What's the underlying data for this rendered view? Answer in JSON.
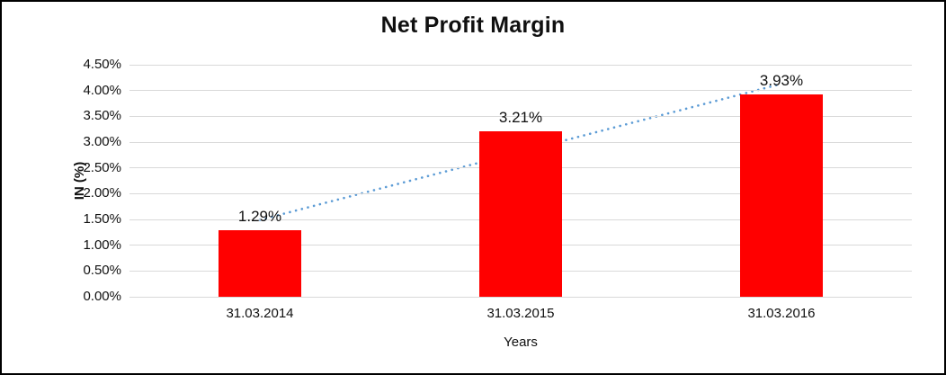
{
  "chart_data": {
    "type": "bar",
    "title": "Net Profit Margin",
    "xlabel": "Years",
    "ylabel": "IN (%)",
    "categories": [
      "31.03.2014",
      "31.03.2015",
      "31.03.2016"
    ],
    "values": [
      1.29,
      3.21,
      3.93
    ],
    "data_labels": [
      "1.29%",
      "3.21%",
      "3.93%"
    ],
    "ylim": [
      0,
      4.5
    ],
    "ytick_step": 0.5,
    "ytick_labels": [
      "0.00%",
      "0.50%",
      "1.00%",
      "1.50%",
      "2.00%",
      "2.50%",
      "3.00%",
      "3.50%",
      "4.00%",
      "4.50%"
    ],
    "grid": true,
    "legend": "none",
    "bar_color": "#FF0000",
    "gridline_color": "#D9D9D9",
    "text_color": "#101010",
    "border_color": "#000000",
    "trendline": {
      "type": "linear",
      "style": "dotted",
      "color": "#5B9BD5",
      "endpoint_values": [
        1.49,
        4.13
      ]
    }
  }
}
